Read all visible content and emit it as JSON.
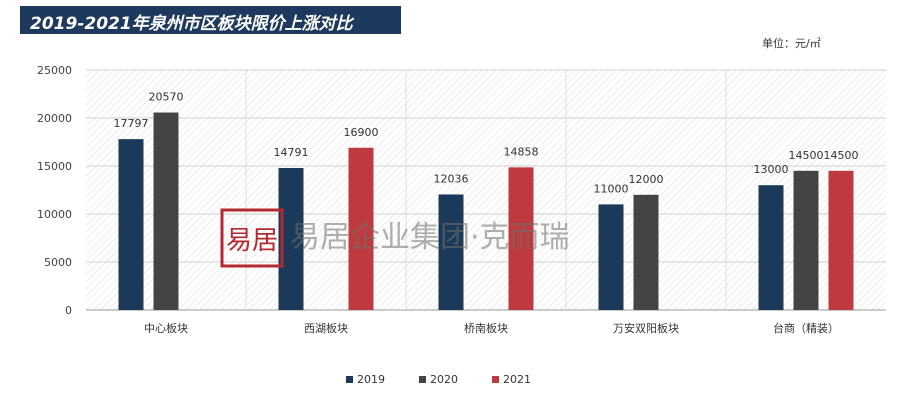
{
  "header": {
    "title": "2019-2021年泉州市区板块限价上涨对比",
    "unit": "单位：元/㎡"
  },
  "watermark": {
    "seal_text": "易居",
    "text": "易居企业集团·克而瑞"
  },
  "colors": {
    "title_bg": "#1d3a5e",
    "s2019": "#1b3a5a",
    "s2020": "#444444",
    "s2021": "#be3a3f"
  },
  "chart_data": {
    "type": "bar",
    "title": "2019-2021年泉州市区板块限价上涨对比",
    "xlabel": "",
    "ylabel": "",
    "unit": "元/㎡",
    "ylim": [
      0,
      25000
    ],
    "yticks": [
      0,
      5000,
      10000,
      15000,
      20000,
      25000
    ],
    "grid": true,
    "legend_position": "bottom",
    "categories": [
      "中心板块",
      "西湖板块",
      "桥南板块",
      "万安双阳板块",
      "台商（精装）"
    ],
    "series": [
      {
        "name": "2019",
        "values": [
          17797,
          14791,
          12036,
          11000,
          13000
        ]
      },
      {
        "name": "2020",
        "values": [
          20570,
          null,
          null,
          12000,
          14500
        ]
      },
      {
        "name": "2021",
        "values": [
          null,
          16900,
          14858,
          null,
          14500
        ]
      }
    ]
  }
}
